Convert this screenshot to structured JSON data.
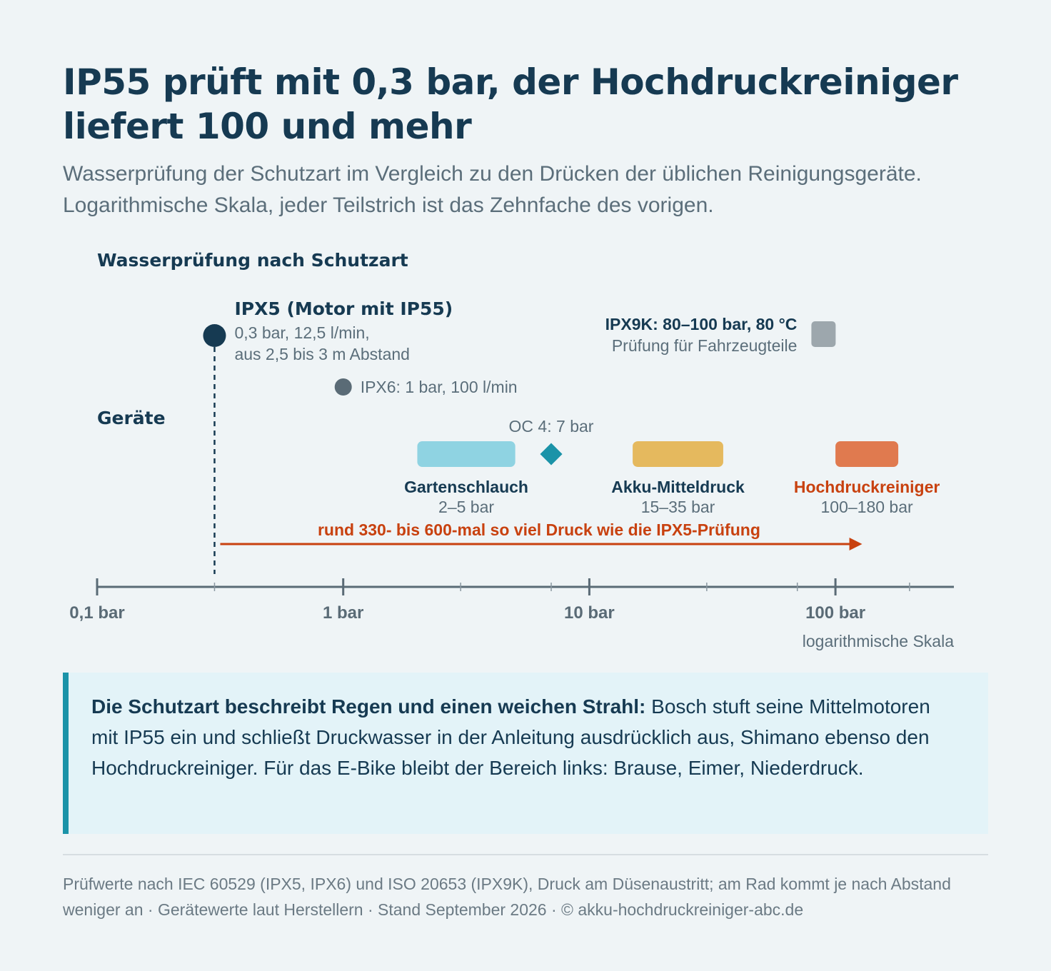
{
  "title": "IP55 prüft mit 0,3 bar, der Hochdruckreiniger liefert 100 und mehr",
  "subtitle": "Wasserprüfung der Schutzart im Vergleich zu den Drücken der üblichen Reinigungsgeräte. Logarithmische Skala, jeder Teilstrich ist das Zehnfache des vorigen.",
  "chart_data": {
    "type": "range-timeline",
    "scale": "log",
    "xlim": [
      0.1,
      300
    ],
    "x_ticks": [
      {
        "value": 0.1,
        "label": "0,1 bar"
      },
      {
        "value": 1,
        "label": "1 bar"
      },
      {
        "value": 10,
        "label": "10 bar"
      },
      {
        "value": 100,
        "label": "100 bar"
      }
    ],
    "minor_ticks": [
      0.3,
      3,
      7,
      30,
      70,
      200
    ],
    "scale_label": "logarithmische Skala",
    "row_labels": {
      "tests": "Wasserprüfung nach Schutzart",
      "devices": "Geräte"
    },
    "tests": [
      {
        "id": "ipx5",
        "value": 0.3,
        "title": "IPX5 (Motor mit IP55)",
        "lines": [
          "0,3 bar, 12,5 l/min,",
          "aus 2,5 bis 3 m Abstand"
        ],
        "color": "#163a52",
        "shape": "circle"
      },
      {
        "id": "ipx6",
        "value": 1,
        "label": "IPX6: 1 bar, 100 l/min",
        "color": "#5a6b76",
        "shape": "circle"
      },
      {
        "id": "ipx9k",
        "range": [
          80,
          100
        ],
        "title": "IPX9K: 80–100 bar, 80 °C",
        "sub": "Prüfung für Fahrzeugteile",
        "color": "#9da7ad",
        "shape": "square"
      }
    ],
    "devices": [
      {
        "id": "garden",
        "name": "Gartenschlauch",
        "range_label": "2–5 bar",
        "range": [
          2,
          5
        ],
        "color": "#8fd3e2"
      },
      {
        "id": "oc4",
        "label": "OC 4: 7 bar",
        "value": 7,
        "color": "#1b93a8",
        "shape": "diamond"
      },
      {
        "id": "akku",
        "name": "Akku-Mitteldruck",
        "range_label": "15–35 bar",
        "range": [
          15,
          35
        ],
        "color": "#e5b95e"
      },
      {
        "id": "hdr",
        "name": "Hochdruckreiniger",
        "range_label": "100–180 bar",
        "range": [
          100,
          180
        ],
        "color": "#e07a4f",
        "name_color": "#c8410f"
      }
    ],
    "annotation": {
      "text": "rund 330- bis 600-mal so viel Druck wie die IPX5-Prüfung",
      "from": 0.3,
      "to": 130,
      "color": "#c8410f"
    }
  },
  "note": {
    "bold": "Die Schutzart beschreibt Regen und einen weichen Strahl:",
    "text": " Bosch stuft seine Mittelmotoren mit IP55 ein und schließt Druckwasser in der Anleitung ausdrücklich aus, Shimano ebenso den Hochdruckreiniger. Für das E-Bike bleibt der Bereich links: Brause, Eimer, Niederdruck."
  },
  "source": "Prüfwerte nach IEC 60529 (IPX5, IPX6) und ISO 20653 (IPX9K), Druck am Düsenaustritt; am Rad kommt je nach Abstand weniger an · Gerätewerte laut Herstellern · Stand September 2026 · © akku-hochdruckreiniger-abc.de"
}
